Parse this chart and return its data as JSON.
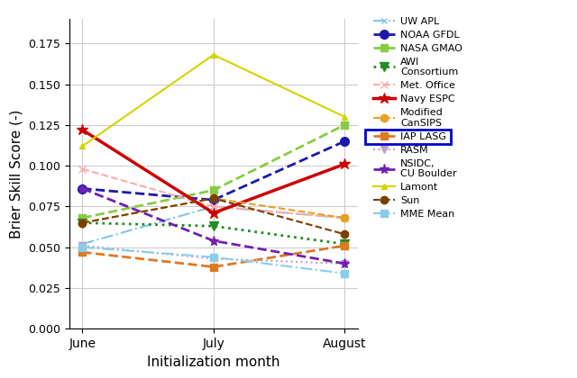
{
  "x_labels": [
    "June",
    "July",
    "August"
  ],
  "x_values": [
    0,
    1,
    2
  ],
  "series": [
    {
      "name": "UW APL",
      "values": [
        0.052,
        0.075,
        0.068
      ],
      "color": "#7ec8e3",
      "linestyle": "-.",
      "marker": "x",
      "linewidth": 1.5,
      "markersize": 5
    },
    {
      "name": "NOAA GFDL",
      "values": [
        0.086,
        0.079,
        0.115
      ],
      "color": "#1a1aaa",
      "linestyle": "--",
      "marker": "o",
      "linewidth": 2.0,
      "markersize": 7
    },
    {
      "name": "NASA GMAO",
      "values": [
        0.068,
        0.085,
        0.125
      ],
      "color": "#88cc44",
      "linestyle": "--",
      "marker": "s",
      "linewidth": 2.0,
      "markersize": 6
    },
    {
      "name": "AWI\nConsortium",
      "values": [
        0.065,
        0.063,
        0.052
      ],
      "color": "#228B22",
      "linestyle": ":",
      "marker": "v",
      "linewidth": 2.0,
      "markersize": 7
    },
    {
      "name": "Met. Office",
      "values": [
        0.098,
        0.075,
        0.068
      ],
      "color": "#ffaaaa",
      "linestyle": "--",
      "marker": "x",
      "linewidth": 1.5,
      "markersize": 6
    },
    {
      "name": "Navy ESPC",
      "values": [
        0.122,
        0.071,
        0.101
      ],
      "color": "#cc0000",
      "linestyle": "-",
      "marker": "*",
      "linewidth": 2.5,
      "markersize": 9
    },
    {
      "name": "Modified\nCanSIPS",
      "values": [
        0.065,
        0.08,
        0.068
      ],
      "color": "#e8a020",
      "linestyle": "--",
      "marker": "o",
      "linewidth": 1.5,
      "markersize": 6
    },
    {
      "name": "IAP LASG",
      "values": [
        0.047,
        0.038,
        0.051
      ],
      "color": "#e07820",
      "linestyle": "--",
      "marker": "s",
      "linewidth": 2.0,
      "markersize": 6
    },
    {
      "name": "RASM",
      "values": [
        0.051,
        0.043,
        0.04
      ],
      "color": "#c0a0c8",
      "linestyle": ":",
      "marker": "v",
      "linewidth": 1.5,
      "markersize": 6
    },
    {
      "name": "NSIDC,\nCU Boulder",
      "values": [
        0.086,
        0.054,
        0.04
      ],
      "color": "#7020b0",
      "linestyle": "--",
      "marker": "*",
      "linewidth": 2.0,
      "markersize": 8
    },
    {
      "name": "Lamont",
      "values": [
        0.112,
        0.168,
        0.13
      ],
      "color": "#d4d400",
      "linestyle": "-",
      "marker": "^",
      "linewidth": 1.5,
      "markersize": 5
    },
    {
      "name": "Sun",
      "values": [
        0.065,
        0.08,
        0.058
      ],
      "color": "#7B3F00",
      "linestyle": "--",
      "marker": "o",
      "linewidth": 1.5,
      "markersize": 6
    },
    {
      "name": "MME Mean",
      "values": [
        0.05,
        0.044,
        0.034
      ],
      "color": "#87ceeb",
      "linestyle": "-.",
      "marker": "s",
      "linewidth": 1.5,
      "markersize": 6
    }
  ],
  "xlabel": "Initialization month",
  "ylabel": "Brier Skill Score (-)",
  "ylim": [
    0.0,
    0.19
  ],
  "yticks": [
    0.0,
    0.025,
    0.05,
    0.075,
    0.1,
    0.125,
    0.15,
    0.175
  ],
  "highlighted_series": "IAP LASG",
  "highlight_box_color": "#0000cc",
  "background_color": "#ffffff",
  "grid_color": "#cccccc"
}
